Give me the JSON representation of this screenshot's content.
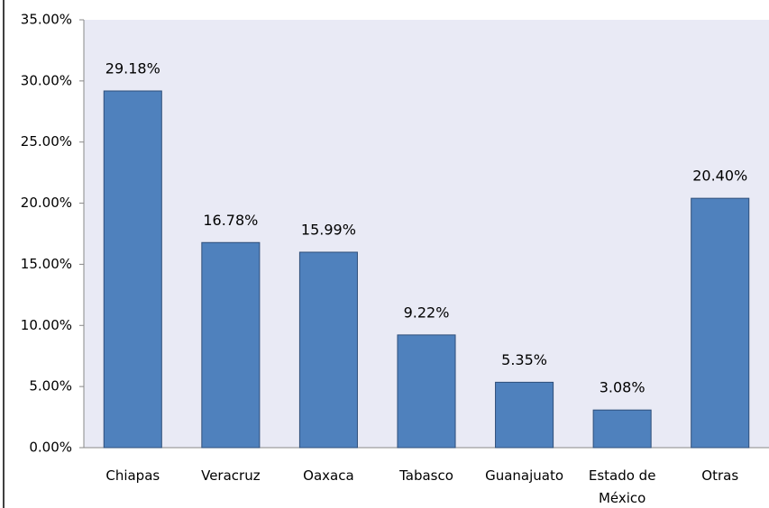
{
  "chart_data": {
    "type": "bar",
    "categories": [
      "Chiapas",
      "Veracruz",
      "Oaxaca",
      "Tabasco",
      "Guanajuato",
      "Estado de México",
      "Otras"
    ],
    "values": [
      29.18,
      16.78,
      15.99,
      9.22,
      5.35,
      3.08,
      20.4
    ],
    "value_labels": [
      "29.18%",
      "16.78%",
      "15.99%",
      "9.22%",
      "5.35%",
      "3.08%",
      "20.40%"
    ],
    "color": "#4f81bd",
    "ylim": [
      0,
      35
    ],
    "yticks": [
      {
        "value": 0,
        "label": "0.00%"
      },
      {
        "value": 5,
        "label": "5.00%"
      },
      {
        "value": 10,
        "label": "10.00%"
      },
      {
        "value": 15,
        "label": "15.00%"
      },
      {
        "value": 20,
        "label": "20.00%"
      },
      {
        "value": 25,
        "label": "25.00%"
      },
      {
        "value": 30,
        "label": "30.00%"
      },
      {
        "value": 35,
        "label": "35.00%"
      }
    ],
    "grid": false
  }
}
